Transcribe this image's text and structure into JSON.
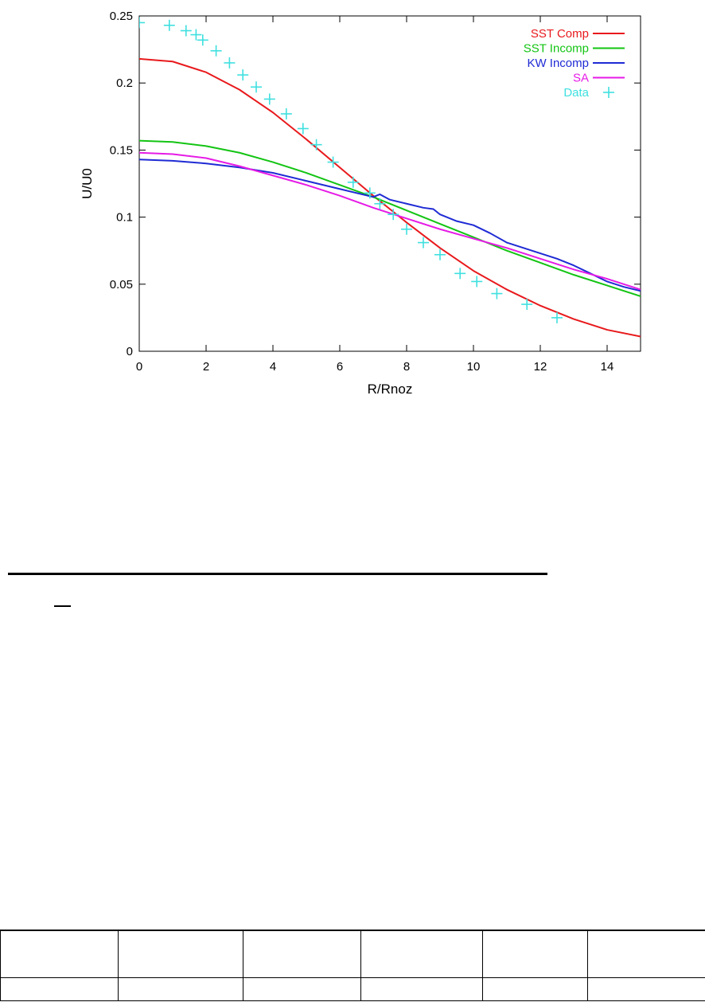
{
  "chart_data": {
    "type": "line",
    "title": "",
    "xlabel": "R/Rnoz",
    "ylabel": "U/U0",
    "xlim": [
      0,
      15
    ],
    "ylim": [
      0,
      0.25
    ],
    "xticks": [
      0,
      2,
      4,
      6,
      8,
      10,
      12,
      14
    ],
    "yticks": [
      0,
      0.05,
      0.1,
      0.15,
      0.2,
      0.25
    ],
    "xtick_labels": [
      "0",
      "2",
      "4",
      "6",
      "8",
      "10",
      "12",
      "14"
    ],
    "ytick_labels": [
      "0",
      "0.05",
      "0.1",
      "0.15",
      "0.2",
      "0.25"
    ],
    "grid": false,
    "legend_position": "top-right",
    "series": [
      {
        "name": "SST Comp",
        "color": "#e8191c",
        "style": "line",
        "x": [
          0,
          1,
          2,
          3,
          4,
          5,
          6,
          7,
          7.5,
          8,
          9,
          10,
          11,
          12,
          13,
          14,
          15
        ],
        "y": [
          0.218,
          0.216,
          0.208,
          0.195,
          0.178,
          0.158,
          0.137,
          0.116,
          0.106,
          0.096,
          0.077,
          0.06,
          0.046,
          0.034,
          0.024,
          0.016,
          0.011
        ]
      },
      {
        "name": "SST Incomp",
        "color": "#13c413",
        "style": "line",
        "x": [
          0,
          1,
          2,
          3,
          4,
          5,
          6,
          7,
          8,
          9,
          10,
          11,
          12,
          13,
          14,
          15
        ],
        "y": [
          0.157,
          0.156,
          0.153,
          0.148,
          0.141,
          0.133,
          0.124,
          0.115,
          0.105,
          0.095,
          0.085,
          0.075,
          0.066,
          0.057,
          0.049,
          0.041
        ]
      },
      {
        "name": "KW Incomp",
        "color": "#1f2bd4",
        "style": "line",
        "x": [
          0,
          1,
          2,
          3,
          4,
          5,
          6,
          7,
          7.2,
          7.5,
          8,
          8.5,
          8.8,
          9,
          9.5,
          10,
          10.5,
          11,
          11.5,
          12,
          12.5,
          13,
          13.5,
          14,
          14.5,
          15
        ],
        "y": [
          0.143,
          0.142,
          0.14,
          0.137,
          0.133,
          0.127,
          0.121,
          0.115,
          0.117,
          0.113,
          0.11,
          0.107,
          0.106,
          0.102,
          0.097,
          0.094,
          0.088,
          0.081,
          0.077,
          0.073,
          0.069,
          0.064,
          0.058,
          0.052,
          0.048,
          0.045
        ]
      },
      {
        "name": "SA",
        "color": "#e61be6",
        "style": "line",
        "x": [
          0,
          1,
          2,
          3,
          4,
          5,
          6,
          7,
          8,
          9,
          10,
          11,
          12,
          13,
          14,
          15
        ],
        "y": [
          0.148,
          0.147,
          0.144,
          0.138,
          0.131,
          0.124,
          0.116,
          0.107,
          0.099,
          0.091,
          0.084,
          0.077,
          0.069,
          0.061,
          0.054,
          0.046
        ]
      },
      {
        "name": "Data",
        "color": "#3fe0df",
        "style": "points",
        "x": [
          0.0,
          0.9,
          1.4,
          1.7,
          1.9,
          2.3,
          2.7,
          3.1,
          3.5,
          3.9,
          4.4,
          4.9,
          5.3,
          5.8,
          6.4,
          6.9,
          7.2,
          7.6,
          8.0,
          8.5,
          9.0,
          9.6,
          10.1,
          10.7,
          11.6,
          12.5
        ],
        "y": [
          0.245,
          0.243,
          0.239,
          0.236,
          0.232,
          0.224,
          0.215,
          0.206,
          0.197,
          0.188,
          0.177,
          0.166,
          0.154,
          0.141,
          0.126,
          0.118,
          0.11,
          0.102,
          0.091,
          0.081,
          0.072,
          0.058,
          0.052,
          0.043,
          0.035,
          0.025
        ]
      }
    ]
  },
  "table": {
    "rows": [
      [
        "",
        "",
        "",
        "",
        "",
        ""
      ],
      [
        "",
        "",
        "",
        "",
        "",
        ""
      ]
    ]
  }
}
